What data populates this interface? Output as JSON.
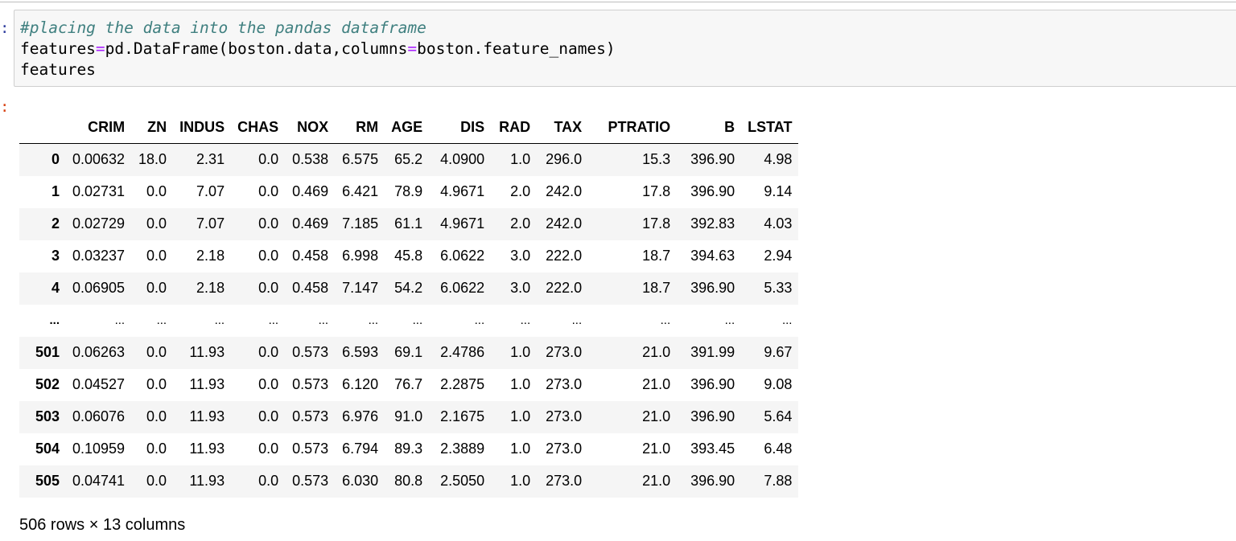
{
  "in_prompt": ":",
  "out_prompt": ":",
  "code": {
    "comment": "#placing the data into the pandas dataframe",
    "line2_a": "features",
    "line2_eq1": "=",
    "line2_b": "pd.DataFrame(boston.data,columns",
    "line2_eq2": "=",
    "line2_c": "boston.feature_names)",
    "line3": "features"
  },
  "dataframe": {
    "columns": [
      "",
      "CRIM",
      "ZN",
      "INDUS",
      "CHAS",
      "NOX",
      "RM",
      "AGE",
      "DIS",
      "RAD",
      "TAX",
      "PTRATIO",
      "B",
      "LSTAT"
    ],
    "rows": [
      [
        "0",
        "0.00632",
        "18.0",
        "2.31",
        "0.0",
        "0.538",
        "6.575",
        "65.2",
        "4.0900",
        "1.0",
        "296.0",
        "15.3",
        "396.90",
        "4.98"
      ],
      [
        "1",
        "0.02731",
        "0.0",
        "7.07",
        "0.0",
        "0.469",
        "6.421",
        "78.9",
        "4.9671",
        "2.0",
        "242.0",
        "17.8",
        "396.90",
        "9.14"
      ],
      [
        "2",
        "0.02729",
        "0.0",
        "7.07",
        "0.0",
        "0.469",
        "7.185",
        "61.1",
        "4.9671",
        "2.0",
        "242.0",
        "17.8",
        "392.83",
        "4.03"
      ],
      [
        "3",
        "0.03237",
        "0.0",
        "2.18",
        "0.0",
        "0.458",
        "6.998",
        "45.8",
        "6.0622",
        "3.0",
        "222.0",
        "18.7",
        "394.63",
        "2.94"
      ],
      [
        "4",
        "0.06905",
        "0.0",
        "2.18",
        "0.0",
        "0.458",
        "7.147",
        "54.2",
        "6.0622",
        "3.0",
        "222.0",
        "18.7",
        "396.90",
        "5.33"
      ],
      [
        "...",
        "...",
        "...",
        "...",
        "...",
        "...",
        "...",
        "...",
        "...",
        "...",
        "...",
        "...",
        "...",
        "..."
      ],
      [
        "501",
        "0.06263",
        "0.0",
        "11.93",
        "0.0",
        "0.573",
        "6.593",
        "69.1",
        "2.4786",
        "1.0",
        "273.0",
        "21.0",
        "391.99",
        "9.67"
      ],
      [
        "502",
        "0.04527",
        "0.0",
        "11.93",
        "0.0",
        "0.573",
        "6.120",
        "76.7",
        "2.2875",
        "1.0",
        "273.0",
        "21.0",
        "396.90",
        "9.08"
      ],
      [
        "503",
        "0.06076",
        "0.0",
        "11.93",
        "0.0",
        "0.573",
        "6.976",
        "91.0",
        "2.1675",
        "1.0",
        "273.0",
        "21.0",
        "396.90",
        "5.64"
      ],
      [
        "504",
        "0.10959",
        "0.0",
        "11.93",
        "0.0",
        "0.573",
        "6.794",
        "89.3",
        "2.3889",
        "1.0",
        "273.0",
        "21.0",
        "393.45",
        "6.48"
      ],
      [
        "505",
        "0.04741",
        "0.0",
        "11.93",
        "0.0",
        "0.573",
        "6.030",
        "80.8",
        "2.5050",
        "1.0",
        "273.0",
        "21.0",
        "396.90",
        "7.88"
      ]
    ],
    "shape_note": "506 rows × 13 columns"
  }
}
